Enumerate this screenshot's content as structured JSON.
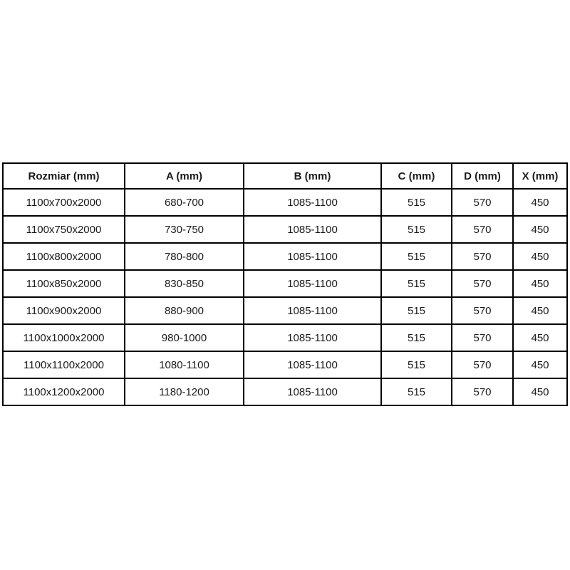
{
  "colors": {
    "background": "#ffffff",
    "border": "#000000",
    "text": "#1a1a1a"
  },
  "table": {
    "columns": [
      "Rozmiar (mm)",
      "A (mm)",
      "B (mm)",
      "C (mm)",
      "D (mm)",
      "X (mm)"
    ],
    "rows": [
      [
        "1100x700x2000",
        "680-700",
        "1085-1100",
        "515",
        "570",
        "450"
      ],
      [
        "1100x750x2000",
        "730-750",
        "1085-1100",
        "515",
        "570",
        "450"
      ],
      [
        "1100x800x2000",
        "780-800",
        "1085-1100",
        "515",
        "570",
        "450"
      ],
      [
        "1100x850x2000",
        "830-850",
        "1085-1100",
        "515",
        "570",
        "450"
      ],
      [
        "1100x900x2000",
        "880-900",
        "1085-1100",
        "515",
        "570",
        "450"
      ],
      [
        "1100x1000x2000",
        "980-1000",
        "1085-1100",
        "515",
        "570",
        "450"
      ],
      [
        "1100x1100x2000",
        "1080-1100",
        "1085-1100",
        "515",
        "570",
        "450"
      ],
      [
        "1100x1200x2000",
        "1180-1200",
        "1085-1100",
        "515",
        "570",
        "450"
      ]
    ]
  }
}
